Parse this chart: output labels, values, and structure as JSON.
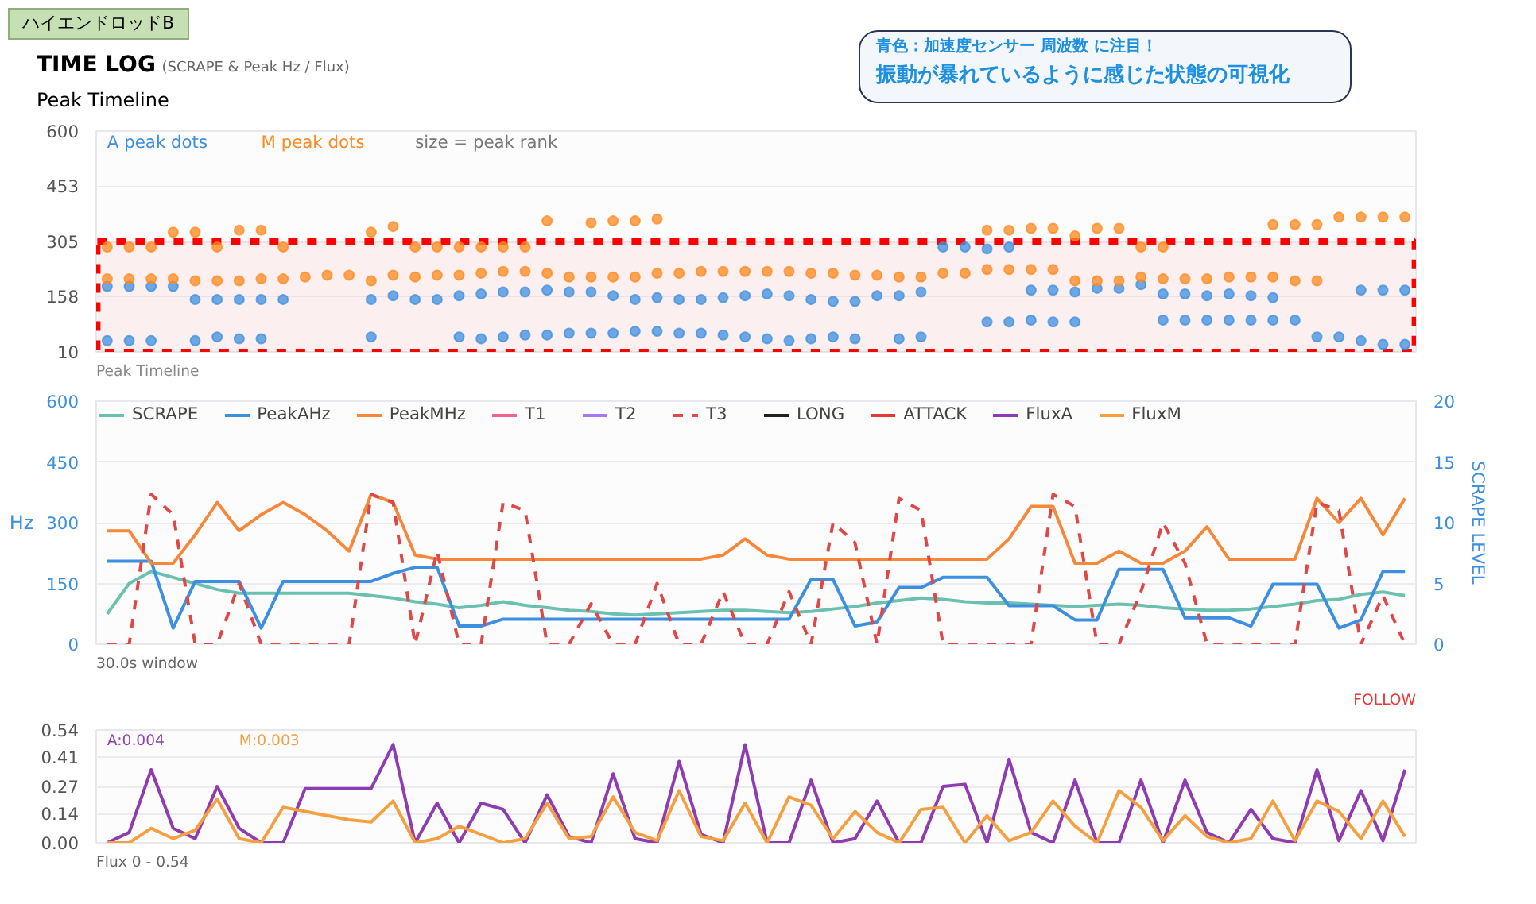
{
  "chart_data": [
    {
      "type": "scatter",
      "title": "TIME LOG",
      "subtitle": "(SCRAPE & Peak Hz / Flux)",
      "annotations": [
        "ハイエンドロッドB",
        "Peak Timeline",
        "size = peak rank",
        "Peak Timeline",
        "青色：加速度センサー 周波数 に注目！",
        "振動が暴れているように感じた状態の可視化"
      ],
      "categories": [
        null,
        null,
        null,
        null,
        null,
        null,
        null,
        null,
        null,
        null,
        null,
        null,
        null,
        null,
        null,
        null,
        null,
        null,
        null,
        null,
        null,
        null,
        null,
        null,
        null,
        null,
        null,
        null,
        null,
        null,
        null,
        null,
        null,
        null,
        null,
        null,
        null,
        null,
        null,
        null,
        null,
        null,
        null,
        null,
        null,
        null,
        null,
        null,
        null,
        null,
        null,
        null,
        null,
        null,
        null,
        null,
        null,
        null,
        null,
        null
      ],
      "ylim": [
        10,
        600
      ],
      "yticks": [
        10,
        158,
        305,
        453,
        600
      ],
      "grid": "y",
      "tick_labels": "y",
      "marker": "circle",
      "bands": [
        {
          "axis": "y",
          "from": 10,
          "to": 305,
          "color": "#ff0000"
        }
      ],
      "series": [
        {
          "name": "A peak dots",
          "color": "#3d8fe0",
          "values": [
            185,
            185,
            185,
            185,
            150,
            150,
            150,
            150,
            150,
            null,
            null,
            null,
            150,
            160,
            150,
            150,
            160,
            165,
            170,
            170,
            175,
            170,
            170,
            160,
            150,
            155,
            150,
            150,
            155,
            160,
            165,
            160,
            150,
            145,
            145,
            160,
            160,
            170,
            290,
            290,
            285,
            290,
            175,
            175,
            170,
            180,
            180,
            190,
            165,
            165,
            160,
            165,
            160,
            155,
            null,
            null,
            null,
            175,
            175,
            175
          ]
        },
        {
          "color": "#3d8fe0",
          "values": [
            40,
            40,
            40,
            null,
            40,
            50,
            45,
            45,
            null,
            null,
            null,
            null,
            50,
            null,
            null,
            null,
            50,
            45,
            50,
            55,
            55,
            60,
            60,
            60,
            65,
            65,
            60,
            60,
            55,
            50,
            45,
            40,
            45,
            50,
            45,
            null,
            45,
            50,
            null,
            null,
            90,
            90,
            95,
            90,
            90,
            null,
            null,
            null,
            95,
            95,
            95,
            95,
            95,
            95,
            95,
            50,
            50,
            40,
            30,
            30
          ]
        },
        {
          "name": "M peak dots",
          "color": "#ff8a1f",
          "values": [
            205,
            205,
            205,
            205,
            200,
            200,
            200,
            205,
            205,
            210,
            215,
            215,
            200,
            215,
            210,
            215,
            215,
            220,
            225,
            225,
            220,
            210,
            210,
            210,
            210,
            220,
            220,
            225,
            225,
            225,
            225,
            225,
            220,
            220,
            215,
            215,
            210,
            210,
            220,
            220,
            230,
            230,
            230,
            230,
            200,
            200,
            200,
            210,
            205,
            205,
            205,
            210,
            210,
            210,
            200,
            200,
            null,
            null,
            null,
            null
          ]
        },
        {
          "color": "#ff8a1f",
          "values": [
            290,
            290,
            290,
            330,
            330,
            290,
            335,
            335,
            290,
            null,
            null,
            null,
            330,
            345,
            290,
            290,
            290,
            290,
            290,
            290,
            360,
            null,
            355,
            360,
            360,
            365,
            null,
            null,
            null,
            null,
            null,
            null,
            null,
            null,
            null,
            null,
            null,
            null,
            null,
            null,
            335,
            335,
            340,
            340,
            320,
            340,
            340,
            290,
            290,
            null,
            null,
            null,
            null,
            350,
            350,
            350,
            370,
            370,
            370,
            370
          ]
        }
      ]
    },
    {
      "type": "line",
      "ylabel": "Hz",
      "y2label": "SCRAPE LEVEL",
      "annotations": [
        "30.0s window",
        "FOLLOW"
      ],
      "categories": [
        null,
        null,
        null,
        null,
        null,
        null,
        null,
        null,
        null,
        null,
        null,
        null,
        null,
        null,
        null,
        null,
        null,
        null,
        null,
        null,
        null,
        null,
        null,
        null,
        null,
        null,
        null,
        null,
        null,
        null,
        null,
        null,
        null,
        null,
        null,
        null,
        null,
        null,
        null,
        null,
        null,
        null,
        null,
        null,
        null,
        null,
        null,
        null,
        null,
        null,
        null,
        null,
        null,
        null,
        null,
        null,
        null,
        null,
        null,
        null
      ],
      "ylim": [
        0,
        600
      ],
      "yticks": [
        0,
        150,
        300,
        450,
        600
      ],
      "y2lim": [
        0,
        20
      ],
      "y2ticks": [
        0,
        5,
        10,
        15,
        20
      ],
      "grid": "y",
      "tick_labels": "y",
      "legend": "top left",
      "series": [
        {
          "name": "SCRAPE",
          "color": "#6cc0b0",
          "axis": "y2",
          "values": [
            2.5,
            5,
            6,
            5.5,
            5,
            4.5,
            4.2,
            4.2,
            4.2,
            4.2,
            4.2,
            4.2,
            4,
            3.8,
            3.5,
            3.3,
            3,
            3.2,
            3.5,
            3.2,
            3,
            2.8,
            2.7,
            2.5,
            2.4,
            2.5,
            2.6,
            2.7,
            2.8,
            2.8,
            2.7,
            2.6,
            2.7,
            2.9,
            3.1,
            3.4,
            3.6,
            3.8,
            3.7,
            3.5,
            3.4,
            3.4,
            3.3,
            3.2,
            3.1,
            3.2,
            3.3,
            3.2,
            3,
            2.9,
            2.8,
            2.8,
            2.9,
            3.1,
            3.3,
            3.6,
            3.7,
            4.1,
            4.3,
            4
          ]
        },
        {
          "name": "PeakAHz",
          "color": "#3d8fe0",
          "values": [
            205,
            205,
            205,
            40,
            155,
            155,
            155,
            40,
            155,
            155,
            155,
            155,
            155,
            175,
            190,
            190,
            45,
            45,
            62,
            62,
            62,
            62,
            62,
            62,
            62,
            62,
            62,
            62,
            62,
            62,
            62,
            62,
            160,
            160,
            45,
            55,
            140,
            140,
            165,
            165,
            165,
            95,
            95,
            95,
            60,
            60,
            185,
            185,
            185,
            65,
            65,
            65,
            45,
            148,
            148,
            148,
            40,
            60,
            180,
            180
          ]
        },
        {
          "name": "PeakMHz",
          "color": "#f5883a",
          "values": [
            280,
            280,
            200,
            200,
            270,
            350,
            280,
            320,
            350,
            320,
            280,
            230,
            370,
            350,
            220,
            210,
            210,
            210,
            210,
            210,
            210,
            210,
            210,
            210,
            210,
            210,
            210,
            210,
            220,
            260,
            220,
            210,
            210,
            210,
            210,
            210,
            210,
            210,
            210,
            210,
            210,
            260,
            340,
            340,
            200,
            200,
            230,
            200,
            200,
            230,
            290,
            210,
            210,
            210,
            210,
            360,
            300,
            360,
            270,
            360
          ]
        },
        {
          "name": "T1",
          "color": "#f06292",
          "values": [
            null,
            null,
            null,
            null,
            null,
            null,
            null,
            null,
            null,
            null,
            null,
            null,
            null,
            null,
            null,
            null,
            null,
            null,
            null,
            null,
            null,
            null,
            null,
            null,
            null,
            null,
            null,
            null,
            null,
            null,
            null,
            null,
            null,
            null,
            null,
            null,
            null,
            null,
            null,
            null,
            null,
            null,
            null,
            null,
            null,
            null,
            null,
            null,
            null,
            null,
            null,
            null,
            null,
            null,
            null,
            null,
            null,
            null,
            null,
            null
          ]
        },
        {
          "name": "T2",
          "color": "#a779f0",
          "values": [
            null,
            null,
            null,
            null,
            null,
            null,
            null,
            null,
            null,
            null,
            null,
            null,
            null,
            null,
            null,
            null,
            null,
            null,
            null,
            null,
            null,
            null,
            null,
            null,
            null,
            null,
            null,
            null,
            null,
            null,
            null,
            null,
            null,
            null,
            null,
            null,
            null,
            null,
            null,
            null,
            null,
            null,
            null,
            null,
            null,
            null,
            null,
            null,
            null,
            null,
            null,
            null,
            null,
            null,
            null,
            null,
            null,
            null,
            null,
            null
          ]
        },
        {
          "name": "T3",
          "color": "#e04848",
          "line_style": "dashed",
          "values": [
            0,
            0,
            370,
            320,
            0,
            0,
            150,
            0,
            0,
            0,
            0,
            0,
            370,
            350,
            0,
            230,
            0,
            0,
            350,
            330,
            0,
            0,
            100,
            0,
            0,
            150,
            0,
            0,
            130,
            0,
            0,
            130,
            0,
            300,
            250,
            0,
            360,
            330,
            0,
            0,
            0,
            0,
            0,
            370,
            340,
            0,
            0,
            130,
            300,
            200,
            0,
            0,
            0,
            0,
            0,
            350,
            330,
            0,
            120,
            0
          ]
        },
        {
          "name": "LONG",
          "color": "#222222",
          "values": [
            null,
            null,
            null,
            null,
            null,
            null,
            null,
            null,
            null,
            null,
            null,
            null,
            null,
            null,
            null,
            null,
            null,
            null,
            null,
            null,
            null,
            null,
            null,
            null,
            null,
            null,
            null,
            null,
            null,
            null,
            null,
            null,
            null,
            null,
            null,
            null,
            null,
            null,
            null,
            null,
            null,
            null,
            null,
            null,
            null,
            null,
            null,
            null,
            null,
            null,
            null,
            null,
            null,
            null,
            null,
            null,
            null,
            null,
            null,
            null
          ]
        },
        {
          "name": "ATTACK",
          "color": "#e53935",
          "values": [
            null,
            null,
            null,
            null,
            null,
            null,
            null,
            null,
            null,
            null,
            null,
            null,
            null,
            null,
            null,
            null,
            null,
            null,
            null,
            null,
            null,
            null,
            null,
            null,
            null,
            null,
            null,
            null,
            null,
            null,
            null,
            null,
            null,
            null,
            null,
            null,
            null,
            null,
            null,
            null,
            null,
            null,
            null,
            null,
            null,
            null,
            null,
            null,
            null,
            null,
            null,
            null,
            null,
            null,
            null,
            null,
            null,
            null,
            null,
            null
          ]
        }
      ]
    },
    {
      "type": "line",
      "annotations": [
        "A:0.004",
        "M:0.003",
        "Flux 0 - 0.54"
      ],
      "legend": "top",
      "categories": [
        null,
        null,
        null,
        null,
        null,
        null,
        null,
        null,
        null,
        null,
        null,
        null,
        null,
        null,
        null,
        null,
        null,
        null,
        null,
        null,
        null,
        null,
        null,
        null,
        null,
        null,
        null,
        null,
        null,
        null,
        null,
        null,
        null,
        null,
        null,
        null,
        null,
        null,
        null,
        null,
        null,
        null,
        null,
        null,
        null,
        null,
        null,
        null,
        null,
        null,
        null,
        null,
        null,
        null,
        null,
        null,
        null,
        null,
        null,
        null
      ],
      "ylim": [
        0,
        0.54
      ],
      "yticks": [
        {
          "value": 0,
          "label": "0.00"
        },
        0.14,
        0.27,
        0.41,
        0.54
      ],
      "grid": "y",
      "tick_labels": "y",
      "series": [
        {
          "name": "FluxA",
          "color": "#8e3cb0",
          "values": [
            0,
            0.05,
            0.35,
            0.07,
            0.02,
            0.27,
            0.07,
            0,
            0,
            0.26,
            0.26,
            0.26,
            0.26,
            0.47,
            0,
            0.19,
            0,
            0.19,
            0.16,
            0,
            0.23,
            0.03,
            0,
            0.33,
            0.02,
            0,
            0.39,
            0.04,
            0,
            0.47,
            0,
            0,
            0.3,
            0,
            0.02,
            0.2,
            0,
            0,
            0.27,
            0.28,
            0,
            0.4,
            0.05,
            0,
            0.3,
            0,
            0,
            0.3,
            0,
            0.3,
            0.05,
            0,
            0.16,
            0.02,
            0,
            0.35,
            0.01,
            0.25,
            0.01,
            0.35
          ]
        },
        {
          "name": "FluxM",
          "color": "#f5a040",
          "values": [
            0,
            0,
            0.07,
            0.02,
            0.06,
            0.21,
            0.02,
            0,
            0.17,
            0.15,
            0.13,
            0.11,
            0.1,
            0.2,
            0,
            0.02,
            0.08,
            0.04,
            0,
            0.02,
            0.19,
            0.02,
            0.03,
            0.22,
            0.05,
            0.01,
            0.25,
            0.03,
            0.01,
            0.19,
            0,
            0.22,
            0.18,
            0.02,
            0.15,
            0.05,
            0,
            0.16,
            0.17,
            0,
            0.13,
            0.01,
            0.05,
            0.2,
            0.08,
            0,
            0.25,
            0.17,
            0.01,
            0.13,
            0.03,
            0,
            0.02,
            0.2,
            0.01,
            0.2,
            0.15,
            0.02,
            0.2,
            0.03
          ]
        }
      ]
    }
  ]
}
